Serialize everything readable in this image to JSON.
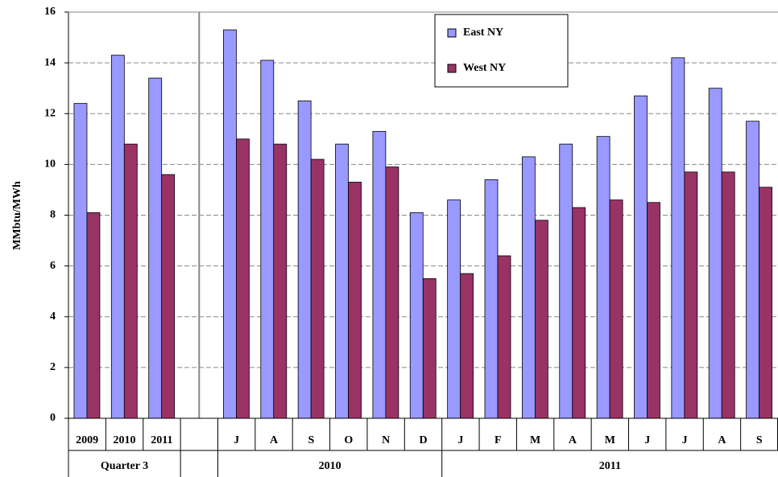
{
  "chart_data": {
    "type": "bar",
    "y_label": "MMbtu/MWh",
    "categories": [
      "2009",
      "2010",
      "2011",
      null,
      "J",
      "A",
      "S",
      "O",
      "N",
      "D",
      "J",
      "F",
      "M",
      "A",
      "M",
      "J",
      "J",
      "A",
      "S"
    ],
    "groups": [
      {
        "label": "Quarter 3",
        "count": 3
      },
      {
        "label": null,
        "count": 1
      },
      {
        "label": "2010",
        "count": 6
      },
      {
        "label": "2011",
        "count": 9
      }
    ],
    "series": [
      {
        "name": "East NY",
        "color": "#9999ff",
        "values": [
          12.4,
          14.3,
          13.4,
          null,
          15.3,
          14.1,
          12.5,
          10.8,
          11.3,
          8.1,
          8.6,
          9.4,
          10.3,
          10.8,
          11.1,
          12.7,
          14.2,
          13.0,
          11.7
        ]
      },
      {
        "name": "West NY",
        "color": "#993366",
        "values": [
          8.1,
          10.8,
          9.6,
          null,
          11.0,
          10.8,
          10.2,
          9.3,
          9.9,
          5.5,
          5.7,
          6.4,
          7.8,
          8.3,
          8.6,
          8.5,
          9.7,
          9.7,
          9.1
        ]
      }
    ],
    "ylim": [
      0,
      16
    ],
    "yticks": [
      0,
      2,
      4,
      6,
      8,
      10,
      12,
      14,
      16
    ],
    "grid": true
  }
}
